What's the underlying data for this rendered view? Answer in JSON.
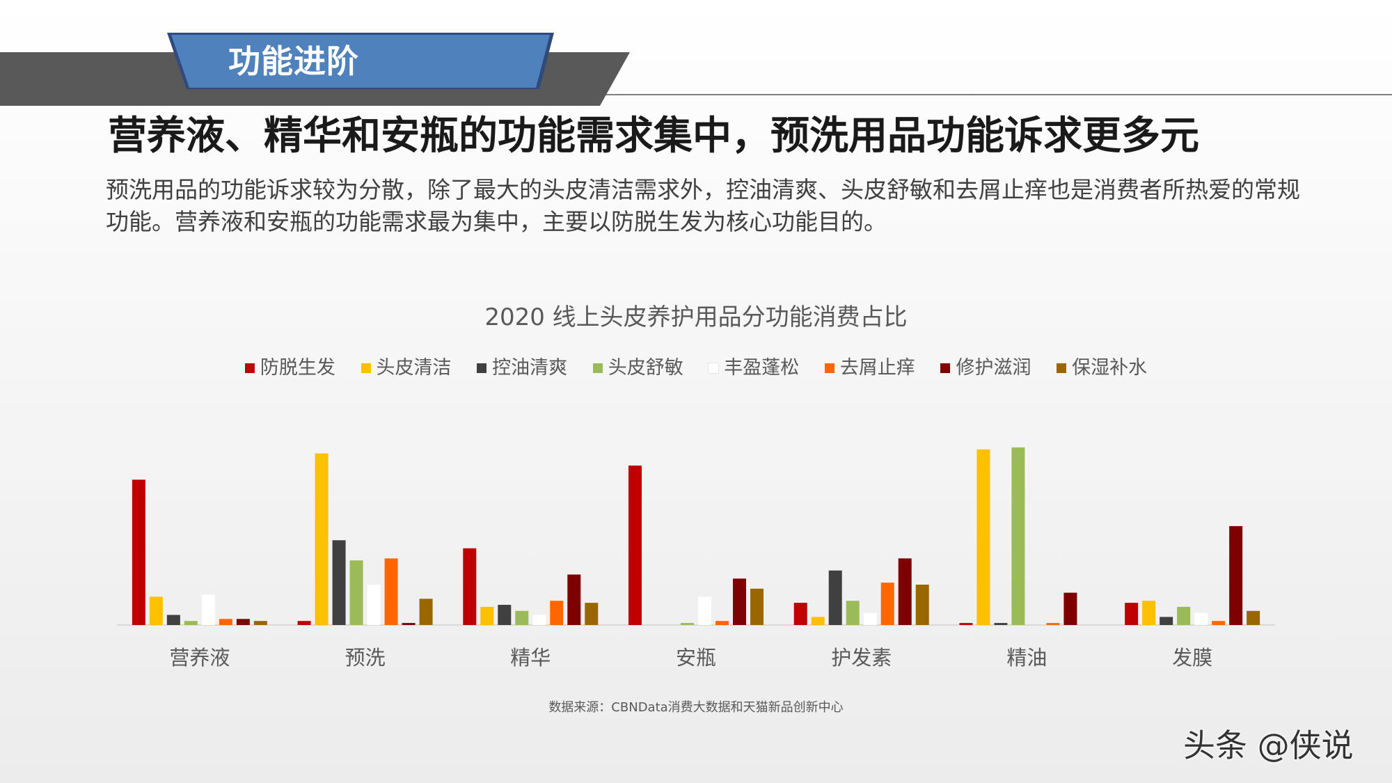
{
  "header": {
    "section_tab": "功能进阶",
    "headline": "营养液、精华和安瓶的功能需求集中，预洗用品功能诉求更多元",
    "description": "预洗用品的功能诉求较为分散，除了最大的头皮清洁需求外，控油清爽、头皮舒敏和去屑止痒也是消费者所热爱的常规功能。营养液和安瓶的功能需求最为集中，主要以防脱生发为核心功能目的。"
  },
  "chart_data": {
    "type": "bar",
    "title": "2020 线上头皮养护用品分功能消费占比",
    "legend_position": "top",
    "grid": false,
    "categories": [
      "营养液",
      "预洗",
      "精华",
      "安瓶",
      "护发素",
      "精油",
      "发膜"
    ],
    "series": [
      {
        "name": "防脱生发",
        "color": "#C00000",
        "values": [
          72,
          2,
          38,
          79,
          11,
          1,
          11
        ]
      },
      {
        "name": "头皮清洁",
        "color": "#FFC000",
        "values": [
          14,
          85,
          9,
          0,
          4,
          87,
          12
        ]
      },
      {
        "name": "控油清爽",
        "color": "#404040",
        "values": [
          5,
          42,
          10,
          0,
          27,
          1,
          4
        ]
      },
      {
        "name": "头皮舒敏",
        "color": "#9BBB59",
        "values": [
          2,
          32,
          7,
          1,
          12,
          88,
          9
        ]
      },
      {
        "name": "丰盈蓬松",
        "color": "#FFFFFF",
        "values": [
          15,
          20,
          5,
          14,
          6,
          0,
          6
        ]
      },
      {
        "name": "去屑止痒",
        "color": "#FF6600",
        "values": [
          3,
          33,
          12,
          2,
          21,
          1,
          2
        ]
      },
      {
        "name": "修护滋润",
        "color": "#7F0000",
        "values": [
          3,
          1,
          25,
          23,
          33,
          16,
          49
        ]
      },
      {
        "name": "保湿补水",
        "color": "#996600",
        "values": [
          2,
          13,
          11,
          18,
          20,
          0,
          7
        ]
      }
    ],
    "ylim": [
      0,
      100
    ]
  },
  "source": "数据来源：CBNData消费大数据和天猫新品创新中心",
  "watermark": "头条 @侠说"
}
